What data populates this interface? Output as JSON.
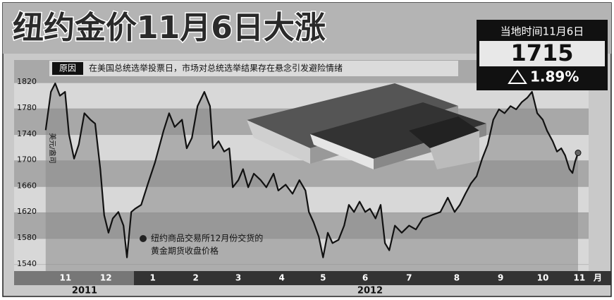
{
  "chart_data": {
    "type": "line",
    "title": "纽约金价11月6日大涨",
    "date_label": "当地时间11月6日",
    "latest_price": "1715",
    "change": "1.89%",
    "reason_label": "原因",
    "reason": "在美国总统选举投票日，市场对总统选举结果存在悬念引发避险情绪",
    "y_unit": "美元/盎司",
    "annotation": [
      "纽约商品交易所12月份交货的",
      "黄金期货收盘价格"
    ],
    "x_unit": "月",
    "years": [
      "2011",
      "2012"
    ],
    "series": [
      {
        "name": "纽约商品交易所12月份交货的黄金期货收盘价格",
        "color": "#111111",
        "x": [
          0.03,
          0.15,
          0.25,
          0.36,
          0.48,
          0.57,
          0.69,
          0.8,
          0.93,
          1.07,
          1.18,
          1.3,
          1.39,
          1.49,
          1.59,
          1.72,
          1.84,
          1.92,
          2.02,
          2.11,
          2.25,
          2.41,
          2.57,
          2.77,
          2.9,
          3.03,
          3.2,
          3.31,
          3.43,
          3.56,
          3.72,
          3.85,
          3.92,
          4.05,
          4.18,
          4.3,
          4.38,
          4.51,
          4.62,
          4.74,
          4.87,
          5.03,
          5.16,
          5.33,
          5.44,
          5.61,
          5.77,
          5.93,
          6.07,
          6.15,
          6.26,
          6.38,
          6.48,
          6.59,
          6.7,
          6.84,
          6.97,
          7.08,
          7.2,
          7.33,
          7.46,
          7.57,
          7.7,
          7.82,
          7.92,
          8.02,
          8.15,
          8.31,
          8.48,
          8.64,
          8.8,
          9.0,
          9.21,
          9.38,
          9.54,
          9.66,
          9.79,
          9.92,
          10.05,
          10.18,
          10.31,
          10.44,
          10.57,
          10.7,
          10.84,
          10.97,
          11.1,
          11.23,
          11.34,
          11.46,
          11.59,
          11.69,
          11.82,
          11.92,
          12.02,
          12.11,
          12.21,
          12.28,
          12.34,
          12.41
        ],
        "values": [
          1747,
          1806,
          1819,
          1800,
          1806,
          1741,
          1703,
          1725,
          1773,
          1763,
          1757,
          1687,
          1616,
          1589,
          1611,
          1621,
          1600,
          1551,
          1621,
          1626,
          1632,
          1665,
          1697,
          1746,
          1773,
          1752,
          1763,
          1719,
          1735,
          1784,
          1806,
          1784,
          1719,
          1730,
          1714,
          1719,
          1659,
          1670,
          1687,
          1659,
          1680,
          1670,
          1659,
          1680,
          1654,
          1663,
          1649,
          1670,
          1654,
          1621,
          1605,
          1583,
          1551,
          1589,
          1573,
          1578,
          1600,
          1632,
          1621,
          1637,
          1621,
          1626,
          1611,
          1632,
          1573,
          1562,
          1600,
          1589,
          1600,
          1594,
          1611,
          1616,
          1621,
          1643,
          1621,
          1632,
          1649,
          1665,
          1676,
          1703,
          1725,
          1763,
          1779,
          1773,
          1784,
          1779,
          1790,
          1797,
          1806,
          1773,
          1763,
          1746,
          1730,
          1714,
          1719,
          1708,
          1687,
          1681,
          1698,
          1712
        ]
      }
    ],
    "xlim": [
      0,
      12.6
    ],
    "xticks": [
      {
        "value": 0.49,
        "label": "11"
      },
      {
        "value": 1.43,
        "label": "12"
      },
      {
        "value": 2.52,
        "label": "1"
      },
      {
        "value": 3.52,
        "label": "2"
      },
      {
        "value": 4.51,
        "label": "3"
      },
      {
        "value": 5.52,
        "label": "4"
      },
      {
        "value": 6.48,
        "label": "5"
      },
      {
        "value": 7.46,
        "label": "6"
      },
      {
        "value": 8.48,
        "label": "7"
      },
      {
        "value": 9.59,
        "label": "8"
      },
      {
        "value": 10.61,
        "label": "9"
      },
      {
        "value": 11.59,
        "label": "10"
      },
      {
        "value": 12.44,
        "label": "11"
      }
    ],
    "ylim": [
      1530,
      1855
    ],
    "yticks": [
      1540,
      1580,
      1620,
      1660,
      1700,
      1740,
      1780,
      1820
    ],
    "grid": true
  }
}
